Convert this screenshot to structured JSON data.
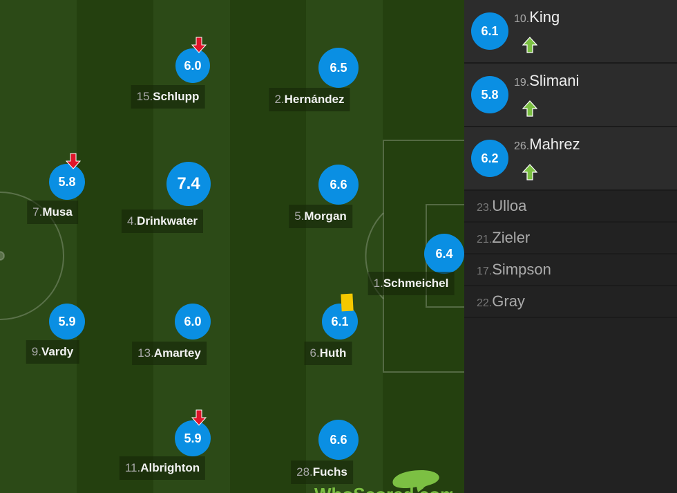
{
  "pitch": {
    "colors": {
      "stripe_light": "#2c4a17",
      "stripe_dark": "#24400f",
      "rating": "#0a8fe3",
      "sub_off": "#e0142a",
      "sub_on": "#7cc043",
      "yellow_card": "#f5c800"
    },
    "players": [
      {
        "number": "15.",
        "name": "Schlupp",
        "rating": "6.0",
        "subbed_off": true
      },
      {
        "number": "2.",
        "name": "Hernández",
        "rating": "6.5"
      },
      {
        "number": "7.",
        "name": "Musa",
        "rating": "5.8",
        "subbed_off": true
      },
      {
        "number": "4.",
        "name": "Drinkwater",
        "rating": "7.4",
        "man_of_match": true
      },
      {
        "number": "5.",
        "name": "Morgan",
        "rating": "6.6"
      },
      {
        "number": "1.",
        "name": "Schmeichel",
        "rating": "6.4"
      },
      {
        "number": "9.",
        "name": "Vardy",
        "rating": "5.9"
      },
      {
        "number": "13.",
        "name": "Amartey",
        "rating": "6.0"
      },
      {
        "number": "6.",
        "name": "Huth",
        "rating": "6.1",
        "yellow_card": true
      },
      {
        "number": "11.",
        "name": "Albrighton",
        "rating": "5.9",
        "subbed_off": true
      },
      {
        "number": "28.",
        "name": "Fuchs",
        "rating": "6.6"
      }
    ],
    "logo": "WhoScored.com"
  },
  "sidebar": {
    "substitutes": [
      {
        "number": "10.",
        "name": "King",
        "rating": "6.1"
      },
      {
        "number": "19.",
        "name": "Slimani",
        "rating": "5.8"
      },
      {
        "number": "26.",
        "name": "Mahrez",
        "rating": "6.2"
      }
    ],
    "bench": [
      {
        "number": "23.",
        "name": "Ulloa"
      },
      {
        "number": "21.",
        "name": "Zieler"
      },
      {
        "number": "17.",
        "name": "Simpson"
      },
      {
        "number": "22.",
        "name": "Gray"
      }
    ]
  }
}
